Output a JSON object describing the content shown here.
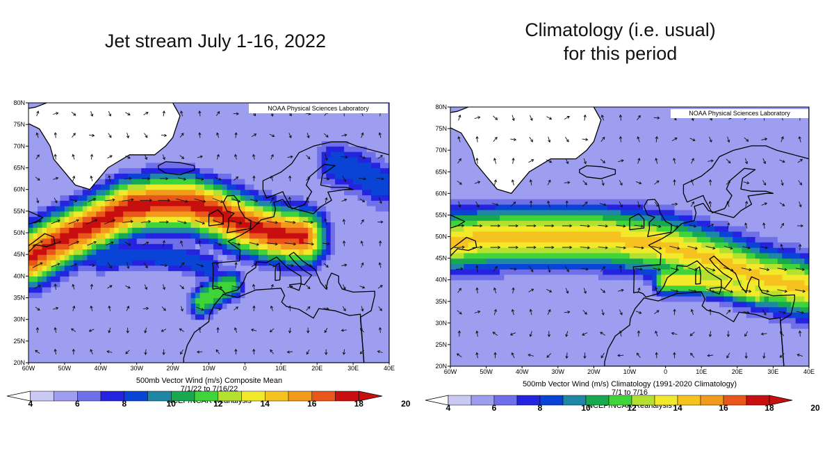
{
  "titles": {
    "left": "Jet stream July 1-16, 2022",
    "right": "Climatology (i.e. usual)\nfor this period"
  },
  "colors": {
    "scale": [
      "#ffffff",
      "#c9c9f3",
      "#9e9ef0",
      "#6f6fea",
      "#2323e0",
      "#0a44d6",
      "#1f86a6",
      "#18a850",
      "#3fd43a",
      "#b4e02f",
      "#f1e92a",
      "#f5c21f",
      "#f29a1c",
      "#e8561a",
      "#c80e0e"
    ],
    "land_outline": "#000000",
    "arrow": "#111111"
  },
  "colorbar": {
    "labels": [
      "4",
      "6",
      "8",
      "10",
      "12",
      "14",
      "16",
      "18",
      "20"
    ]
  },
  "panels": [
    {
      "id": "left",
      "credit": "NOAA Physical Sciences Laboratory",
      "caption_line1": "500mb Vector Wind (m/s) Composite Mean",
      "caption_line2": "7/1/22 to 7/16/22",
      "caption_line3": "NCEP/NCAR Reanalysis",
      "lat_labels": [
        "80N",
        "75N",
        "70N",
        "65N",
        "60N",
        "55N",
        "50N",
        "45N",
        "40N",
        "35N",
        "30N",
        "25N",
        "20N"
      ],
      "lon_labels": [
        "60W",
        "50W",
        "40W",
        "30W",
        "20W",
        "10W",
        "0",
        "10E",
        "20E",
        "30E",
        "40E"
      ]
    },
    {
      "id": "right",
      "credit": "NOAA Physical Sciences Laboratory",
      "caption_line1": "500mb Vector Wind (m/s) Climatology (1991-2020 Climatology)",
      "caption_line2": "7/1 to 7/16",
      "caption_line3": "NCEP/NCAR Reanalysis",
      "lat_labels": [
        "80N",
        "75N",
        "70N",
        "65N",
        "60N",
        "55N",
        "50N",
        "45N",
        "40N",
        "35N",
        "30N",
        "25N",
        "20N"
      ],
      "lon_labels": [
        "60W",
        "50W",
        "40W",
        "30W",
        "20W",
        "10W",
        "0",
        "10E",
        "20E",
        "30E",
        "40E"
      ]
    }
  ],
  "map_data": {
    "type": "wind-speed-map",
    "units": "m/s",
    "lat_range": [
      20,
      80
    ],
    "lon_range": [
      -60,
      40
    ],
    "jets": [
      {
        "panel": "left",
        "core": [
          [
            -60,
            44
          ],
          [
            -52,
            48
          ],
          [
            -42,
            52
          ],
          [
            -32,
            56
          ],
          [
            -24,
            57
          ],
          [
            -16,
            57
          ],
          [
            -8,
            55
          ],
          [
            0,
            52
          ],
          [
            8,
            50
          ],
          [
            16,
            49
          ]
        ],
        "core_speed": 20,
        "width_deg": 9
      },
      {
        "panel": "left",
        "core": [
          [
            -4,
            38
          ],
          [
            -9,
            36
          ],
          [
            -12,
            34
          ]
        ],
        "core_speed": 13,
        "width_deg": 5
      },
      {
        "panel": "left",
        "core": [
          [
            -40,
            44
          ],
          [
            -28,
            45
          ],
          [
            -16,
            44
          ],
          [
            -10,
            42
          ]
        ],
        "core_speed": 9,
        "width_deg": 5
      },
      {
        "panel": "left",
        "core": [
          [
            25,
            66
          ],
          [
            32,
            64
          ],
          [
            38,
            61
          ]
        ],
        "core_speed": 9,
        "width_deg": 8
      },
      {
        "panel": "right",
        "core": [
          [
            -60,
            49
          ],
          [
            -45,
            50
          ],
          [
            -30,
            50
          ],
          [
            -18,
            50
          ],
          [
            -8,
            49
          ],
          [
            0,
            48
          ],
          [
            8,
            46
          ],
          [
            16,
            44
          ],
          [
            25,
            41
          ],
          [
            40,
            38
          ]
        ],
        "core_speed": 16,
        "width_deg": 10
      },
      {
        "panel": "right",
        "core": [
          [
            0,
            40
          ],
          [
            8,
            40
          ],
          [
            16,
            39
          ],
          [
            26,
            37
          ]
        ],
        "core_speed": 15,
        "width_deg": 5
      }
    ]
  }
}
